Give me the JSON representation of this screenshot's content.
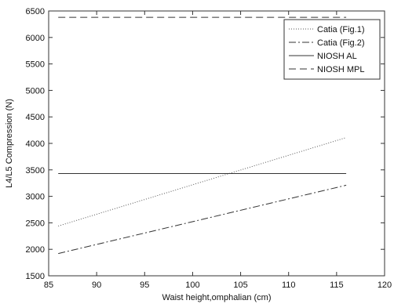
{
  "chart_data": {
    "type": "line",
    "xlabel": "Waist height,omphalian (cm)",
    "ylabel": "L4/L5 Compression (N)",
    "xlim": [
      85,
      120
    ],
    "ylim": [
      1500,
      6500
    ],
    "xticks": [
      85,
      90,
      95,
      100,
      105,
      110,
      115,
      120
    ],
    "yticks": [
      1500,
      2000,
      2500,
      3000,
      3500,
      4000,
      4500,
      5000,
      5500,
      6000,
      6500
    ],
    "grid": false,
    "legend_position": "top-right",
    "series": [
      {
        "name": "Catia (Fig.1)",
        "style": "dotted",
        "color": "#555555",
        "x": [
          86,
          116
        ],
        "y": [
          2440,
          4110
        ]
      },
      {
        "name": "Catia (Fig.2)",
        "style": "dashdot",
        "color": "#333333",
        "x": [
          86,
          116
        ],
        "y": [
          1920,
          3210
        ]
      },
      {
        "name": "NIOSH AL",
        "style": "solid",
        "color": "#333333",
        "x": [
          86,
          116
        ],
        "y": [
          3430,
          3430
        ]
      },
      {
        "name": "NIOSH MPL",
        "style": "dashed",
        "color": "#333333",
        "x": [
          86,
          116
        ],
        "y": [
          6380,
          6380
        ]
      }
    ]
  }
}
